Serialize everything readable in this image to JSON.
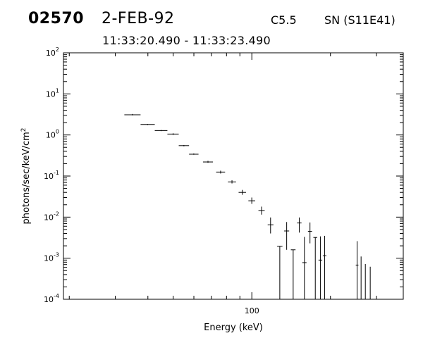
{
  "header": {
    "event_id": "02570",
    "date": "2-FEB-92",
    "goes_class": "C5.5",
    "location": "SN (S11E41)",
    "time_range": "11:33:20.490 - 11:33:23.490"
  },
  "chart_data": {
    "type": "scatter",
    "xlabel": "Energy (keV)",
    "ylabel": "photons/sec/keV/cm^2",
    "x_scale": "log",
    "y_scale": "log",
    "xlim": [
      19,
      380
    ],
    "ylim": [
      0.0001,
      100
    ],
    "x_ticks": [
      {
        "value": 100,
        "label": "100"
      }
    ],
    "y_ticks": [
      {
        "value": 0.0001,
        "base": "10",
        "exp": "-4"
      },
      {
        "value": 0.001,
        "base": "10",
        "exp": "-3"
      },
      {
        "value": 0.01,
        "base": "10",
        "exp": "-2"
      },
      {
        "value": 0.1,
        "base": "10",
        "exp": "-1"
      },
      {
        "value": 1,
        "base": "10",
        "exp": "0"
      },
      {
        "value": 10,
        "base": "10",
        "exp": "1"
      },
      {
        "value": 100,
        "base": "10",
        "exp": "2"
      }
    ],
    "grid": false,
    "points": [
      {
        "x_low": 32.5,
        "x_high": 37.5,
        "y": 3.1,
        "y_err_low": 3.0,
        "y_err_high": 3.25
      },
      {
        "x_low": 37.5,
        "x_high": 42.5,
        "y": 1.8,
        "y_err_low": 1.75,
        "y_err_high": 1.85
      },
      {
        "x_low": 42.5,
        "x_high": 47.5,
        "y": 1.28,
        "y_err_low": 1.24,
        "y_err_high": 1.32
      },
      {
        "x_low": 47.5,
        "x_high": 52.5,
        "y": 1.05,
        "y_err_low": 1.0,
        "y_err_high": 1.1
      },
      {
        "x_low": 52.5,
        "x_high": 57.5,
        "y": 0.55,
        "y_err_low": 0.53,
        "y_err_high": 0.57
      },
      {
        "x_low": 57.5,
        "x_high": 62.5,
        "y": 0.34,
        "y_err_low": 0.33,
        "y_err_high": 0.355
      },
      {
        "x_low": 65,
        "x_high": 71,
        "y": 0.22,
        "y_err_low": 0.21,
        "y_err_high": 0.235
      },
      {
        "x_low": 73,
        "x_high": 79,
        "y": 0.125,
        "y_err_low": 0.115,
        "y_err_high": 0.135
      },
      {
        "x_low": 81,
        "x_high": 87,
        "y": 0.072,
        "y_err_low": 0.066,
        "y_err_high": 0.079
      },
      {
        "x_low": 89,
        "x_high": 95,
        "y": 0.04,
        "y_err_low": 0.035,
        "y_err_high": 0.046
      },
      {
        "x_low": 97,
        "x_high": 103,
        "y": 0.025,
        "y_err_low": 0.021,
        "y_err_high": 0.03
      },
      {
        "x_low": 106,
        "x_high": 112,
        "y": 0.0145,
        "y_err_low": 0.0115,
        "y_err_high": 0.018
      },
      {
        "x_low": 115,
        "x_high": 121,
        "y": 0.0065,
        "y_err_low": 0.004,
        "y_err_high": 0.0098
      },
      {
        "x_low": 125,
        "x_high": 131,
        "y": 0.00195,
        "y_err_low": 0.0001,
        "y_err_high": 0.00195,
        "upper_limit": true
      },
      {
        "x_low": 133,
        "x_high": 139,
        "y": 0.0046,
        "y_err_low": 0.0016,
        "y_err_high": 0.0076
      },
      {
        "x_low": 141,
        "x_high": 147,
        "y": 0.0016,
        "y_err_low": 0.0001,
        "y_err_high": 0.0016,
        "upper_limit": true
      },
      {
        "x_low": 149,
        "x_high": 155,
        "y": 0.0072,
        "y_err_low": 0.0042,
        "y_err_high": 0.0098
      },
      {
        "x_low": 156,
        "x_high": 162,
        "y": 0.00078,
        "y_err_low": 0.0001,
        "y_err_high": 0.0033
      },
      {
        "x_low": 164,
        "x_high": 170,
        "y": 0.0045,
        "y_err_low": 0.0023,
        "y_err_high": 0.0074
      },
      {
        "x_low": 172,
        "x_high": 178,
        "y": 0.0032,
        "y_err_low": 0.0001,
        "y_err_high": 0.0032,
        "upper_limit": true
      },
      {
        "x_low": 180,
        "x_high": 186,
        "y": 0.0009,
        "y_err_low": 0.0001,
        "y_err_high": 0.0034
      },
      {
        "x_low": 187,
        "x_high": 193,
        "y": 0.00115,
        "y_err_low": 0.0001,
        "y_err_high": 0.0035
      },
      {
        "x_low": 250,
        "x_high": 256,
        "y": 0.00068,
        "y_err_low": 0.0001,
        "y_err_high": 0.0026
      },
      {
        "x_low": 262,
        "x_high": 262,
        "y": 0.0011,
        "y_err_low": 0.0001,
        "y_err_high": 0.0011,
        "upper_limit": true
      },
      {
        "x_low": 272,
        "x_high": 272,
        "y": 0.00072,
        "y_err_low": 0.0001,
        "y_err_high": 0.00072,
        "upper_limit": true
      },
      {
        "x_low": 284,
        "x_high": 284,
        "y": 0.00062,
        "y_err_low": 0.0001,
        "y_err_high": 0.00062,
        "upper_limit": true
      }
    ]
  }
}
